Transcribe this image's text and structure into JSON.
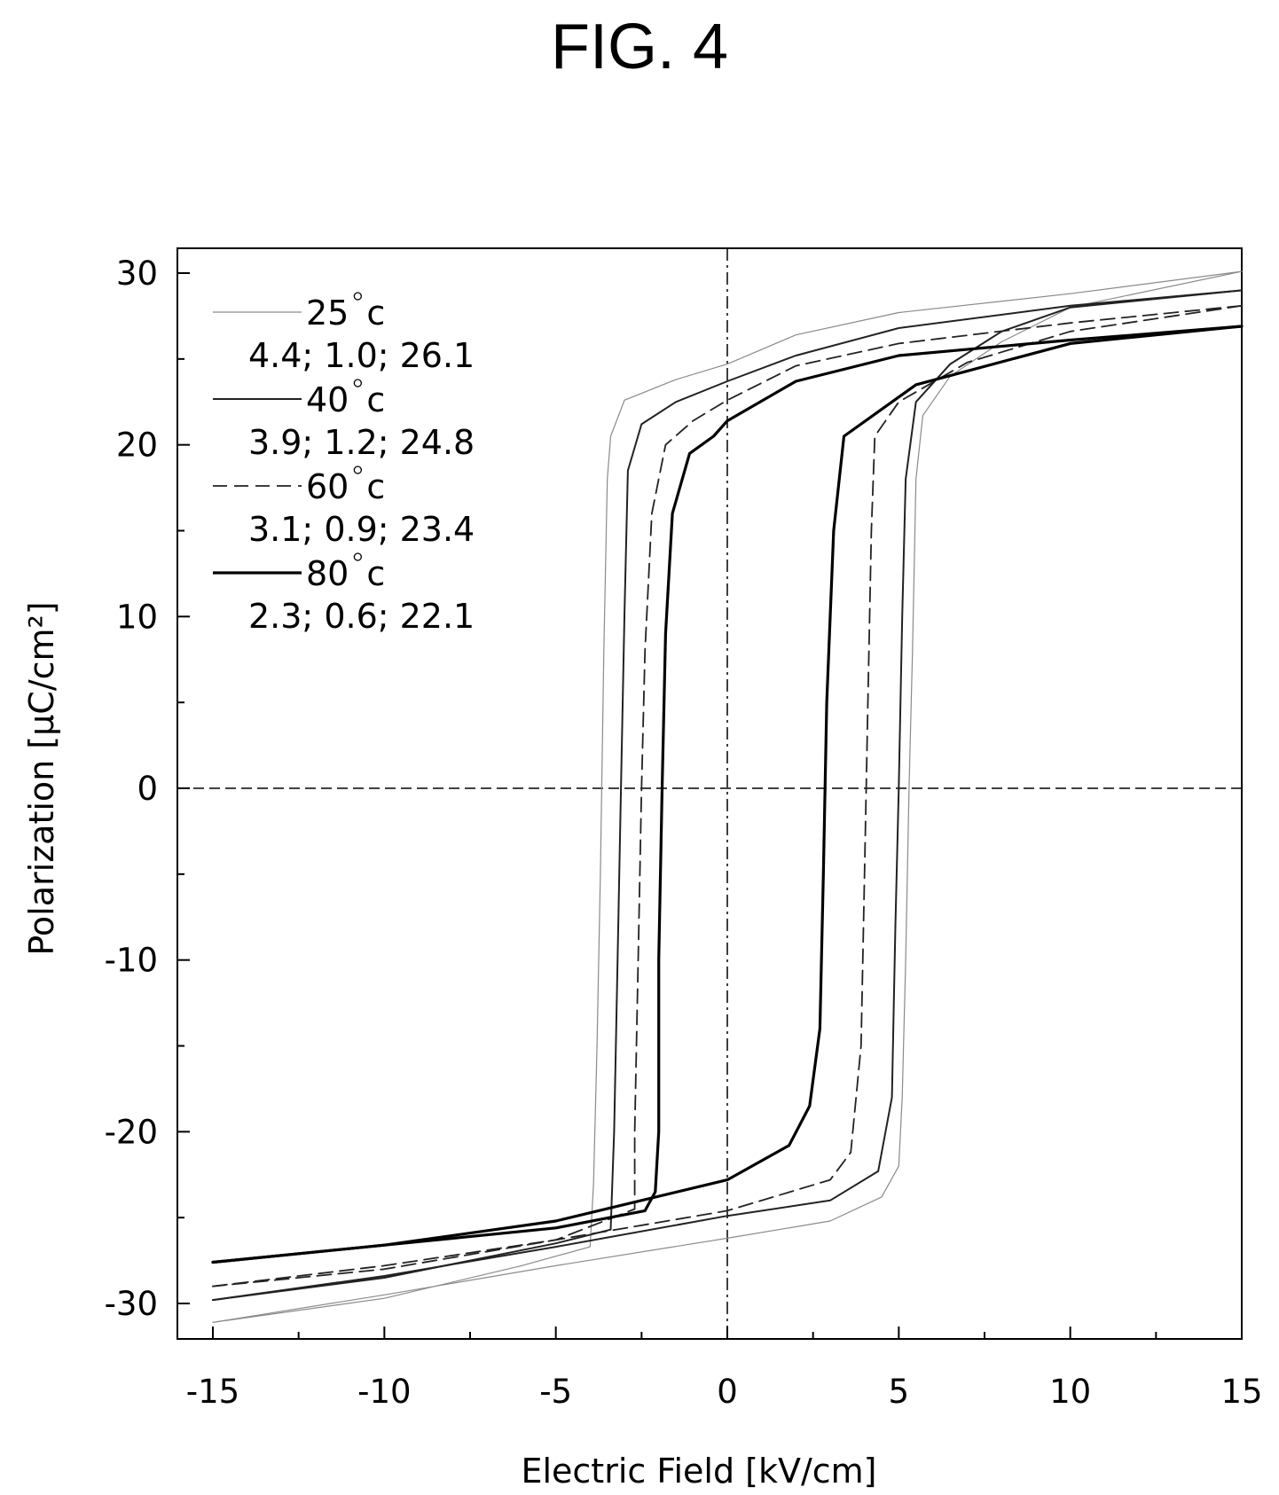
{
  "figure_title": "FIG. 4",
  "chart_data": {
    "type": "line",
    "title": "",
    "xlabel": "Electric Field [kV/cm]",
    "ylabel": "Polarization [μC/cm²]",
    "xlim": [
      -15,
      15
    ],
    "ylim": [
      -31.5,
      31.5
    ],
    "x_ticks": [
      -15,
      -10,
      -5,
      0,
      5,
      10,
      15
    ],
    "x_tick_labels": [
      "-15",
      "-10",
      "-5",
      "0",
      "5",
      "10",
      "15"
    ],
    "y_ticks": [
      30,
      20,
      10,
      0,
      -10,
      -20,
      -30
    ],
    "y_tick_labels": [
      "30",
      "20",
      "10",
      "0",
      "-10",
      "-20",
      "-30"
    ],
    "grid": false,
    "legend_position": "top-left",
    "reference_lines": [
      {
        "orientation": "vertical",
        "value": 0,
        "style": "dash-dot"
      },
      {
        "orientation": "horizontal",
        "value": 0,
        "style": "dashed"
      }
    ],
    "series": [
      {
        "name": "25°c",
        "legend_label": "25",
        "legend_value": "4.4; 1.0; 26.1",
        "style": "solid-thin",
        "color": "#8a8a8a",
        "upper_branch": [
          [
            15,
            30.1
          ],
          [
            10,
            28.8
          ],
          [
            5,
            27.7
          ],
          [
            2,
            26.4
          ],
          [
            0,
            24.7
          ],
          [
            -1.5,
            23.8
          ],
          [
            -3,
            22.6
          ],
          [
            -3.4,
            20.5
          ],
          [
            -3.5,
            18
          ],
          [
            -3.6,
            8
          ],
          [
            -3.7,
            -5
          ],
          [
            -3.8,
            -15
          ],
          [
            -3.9,
            -23
          ],
          [
            -4,
            -26.7
          ],
          [
            -6,
            -27.8
          ],
          [
            -10,
            -29.7
          ],
          [
            -15,
            -31.1
          ]
        ],
        "lower_branch": [
          [
            -15,
            -31.1
          ],
          [
            -10,
            -29.5
          ],
          [
            -5,
            -27.8
          ],
          [
            0,
            -26.2
          ],
          [
            3,
            -25.2
          ],
          [
            4.5,
            -23.8
          ],
          [
            5,
            -22
          ],
          [
            5.1,
            -18
          ],
          [
            5.2,
            -10
          ],
          [
            5.3,
            0
          ],
          [
            5.4,
            8
          ],
          [
            5.5,
            18
          ],
          [
            5.7,
            21.7
          ],
          [
            6.5,
            24
          ],
          [
            8,
            26
          ],
          [
            10,
            28
          ],
          [
            15,
            30.1
          ]
        ]
      },
      {
        "name": "40°c",
        "legend_label": "40",
        "legend_value": "3.9; 1.2; 24.8",
        "style": "solid",
        "color": "#222222",
        "upper_branch": [
          [
            15,
            29
          ],
          [
            10,
            28.1
          ],
          [
            5,
            26.8
          ],
          [
            2,
            25.2
          ],
          [
            0,
            23.7
          ],
          [
            -1.5,
            22.5
          ],
          [
            -2.5,
            21.2
          ],
          [
            -2.9,
            18.5
          ],
          [
            -3,
            10
          ],
          [
            -3.1,
            0
          ],
          [
            -3.2,
            -10
          ],
          [
            -3.3,
            -20
          ],
          [
            -3.4,
            -25.7
          ],
          [
            -5,
            -26.5
          ],
          [
            -10,
            -28.5
          ],
          [
            -15,
            -29.8
          ]
        ],
        "lower_branch": [
          [
            -15,
            -29.8
          ],
          [
            -10,
            -28.4
          ],
          [
            -5,
            -26.7
          ],
          [
            0,
            -24.9
          ],
          [
            3,
            -24
          ],
          [
            4.4,
            -22.3
          ],
          [
            4.8,
            -18
          ],
          [
            4.9,
            -8
          ],
          [
            5,
            0
          ],
          [
            5.1,
            10
          ],
          [
            5.2,
            18
          ],
          [
            5.5,
            22.5
          ],
          [
            6.5,
            24.7
          ],
          [
            8,
            26.6
          ],
          [
            10,
            28
          ],
          [
            15,
            29
          ]
        ]
      },
      {
        "name": "60°c",
        "legend_label": "60",
        "legend_value": "3.1; 0.9; 23.4",
        "style": "dashed",
        "color": "#222222",
        "upper_branch": [
          [
            15,
            28.1
          ],
          [
            10,
            27.1
          ],
          [
            5,
            25.9
          ],
          [
            2,
            24.6
          ],
          [
            0,
            22.6
          ],
          [
            -1,
            21.4
          ],
          [
            -1.8,
            20
          ],
          [
            -2.2,
            16
          ],
          [
            -2.4,
            8
          ],
          [
            -2.5,
            0
          ],
          [
            -2.6,
            -10
          ],
          [
            -2.7,
            -20
          ],
          [
            -2.7,
            -24.5
          ],
          [
            -5,
            -26.3
          ],
          [
            -10,
            -28
          ],
          [
            -15,
            -29
          ]
        ],
        "lower_branch": [
          [
            -15,
            -29
          ],
          [
            -10,
            -27.8
          ],
          [
            -5,
            -26.3
          ],
          [
            0,
            -24.6
          ],
          [
            3,
            -22.8
          ],
          [
            3.6,
            -21.2
          ],
          [
            3.9,
            -15
          ],
          [
            4,
            -5
          ],
          [
            4.1,
            5
          ],
          [
            4.2,
            15
          ],
          [
            4.3,
            20.5
          ],
          [
            5,
            22.5
          ],
          [
            7,
            24.8
          ],
          [
            10,
            26.6
          ],
          [
            15,
            28.1
          ]
        ]
      },
      {
        "name": "80°c",
        "legend_label": "80",
        "legend_value": "2.3; 0.6; 22.1",
        "style": "solid-thick",
        "color": "#000000",
        "upper_branch": [
          [
            15,
            26.9
          ],
          [
            10,
            26.1
          ],
          [
            5,
            25.2
          ],
          [
            2,
            23.7
          ],
          [
            0,
            21.4
          ],
          [
            -0.4,
            20.5
          ],
          [
            -1.1,
            19.5
          ],
          [
            -1.6,
            16
          ],
          [
            -1.8,
            9
          ],
          [
            -1.9,
            0
          ],
          [
            -2,
            -10
          ],
          [
            -2,
            -20
          ],
          [
            -2.1,
            -23.5
          ],
          [
            -2.4,
            -24.6
          ],
          [
            -5,
            -25.6
          ],
          [
            -10,
            -26.6
          ],
          [
            -15,
            -27.6
          ]
        ],
        "lower_branch": [
          [
            -15,
            -27.6
          ],
          [
            -10,
            -26.6
          ],
          [
            -5,
            -25.2
          ],
          [
            0,
            -22.8
          ],
          [
            1.8,
            -20.8
          ],
          [
            2.4,
            -18.5
          ],
          [
            2.7,
            -14
          ],
          [
            2.8,
            -5
          ],
          [
            2.9,
            5
          ],
          [
            3.1,
            15
          ],
          [
            3.4,
            20.5
          ],
          [
            5.5,
            23.5
          ],
          [
            10,
            25.9
          ],
          [
            15,
            26.9
          ]
        ]
      }
    ]
  }
}
